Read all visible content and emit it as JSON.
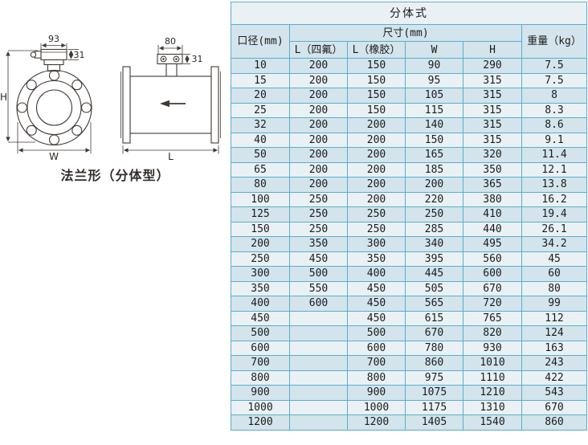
{
  "diagram": {
    "caption": "法兰形（分体型）",
    "front": {
      "top_width": "93",
      "top_height": "31",
      "height_label": "H",
      "width_label": "W"
    },
    "side": {
      "top_width": "80",
      "top_height": "31",
      "length_label": "L"
    }
  },
  "table": {
    "title": "分体式",
    "headers": {
      "diameter": "口径(mm)",
      "size_group": "尺寸(mm)",
      "l_ptfe": "L（四氟）",
      "l_rubber": "L（橡胶）",
      "w": "W",
      "h": "H",
      "weight": "重量（kg）"
    },
    "rows": [
      [
        "10",
        "200",
        "150",
        "90",
        "290",
        "7.5"
      ],
      [
        "15",
        "200",
        "150",
        "95",
        "315",
        "7.5"
      ],
      [
        "20",
        "200",
        "150",
        "105",
        "315",
        "8"
      ],
      [
        "25",
        "200",
        "150",
        "115",
        "315",
        "8.3"
      ],
      [
        "32",
        "200",
        "200",
        "140",
        "315",
        "8.6"
      ],
      [
        "40",
        "200",
        "200",
        "150",
        "315",
        "9.1"
      ],
      [
        "50",
        "200",
        "200",
        "165",
        "320",
        "11.4"
      ],
      [
        "65",
        "200",
        "200",
        "185",
        "350",
        "12.1"
      ],
      [
        "80",
        "200",
        "200",
        "200",
        "365",
        "13.8"
      ],
      [
        "100",
        "250",
        "200",
        "220",
        "380",
        "16.2"
      ],
      [
        "125",
        "250",
        "250",
        "250",
        "410",
        "19.4"
      ],
      [
        "150",
        "250",
        "250",
        "285",
        "440",
        "26.1"
      ],
      [
        "200",
        "350",
        "300",
        "340",
        "495",
        "34.2"
      ],
      [
        "250",
        "450",
        "350",
        "395",
        "560",
        "45"
      ],
      [
        "300",
        "500",
        "400",
        "445",
        "600",
        "60"
      ],
      [
        "350",
        "550",
        "450",
        "505",
        "670",
        "80"
      ],
      [
        "400",
        "600",
        "450",
        "565",
        "720",
        "99"
      ],
      [
        "450",
        "",
        "450",
        "615",
        "765",
        "112"
      ],
      [
        "500",
        "",
        "500",
        "670",
        "820",
        "124"
      ],
      [
        "600",
        "",
        "600",
        "780",
        "930",
        "163"
      ],
      [
        "700",
        "",
        "700",
        "860",
        "1010",
        "243"
      ],
      [
        "800",
        "",
        "800",
        "975",
        "1110",
        "422"
      ],
      [
        "900",
        "",
        "900",
        "1075",
        "1210",
        "543"
      ],
      [
        "1000",
        "",
        "1000",
        "1175",
        "1310",
        "670"
      ],
      [
        "1200",
        "",
        "1200",
        "1405",
        "1540",
        "860"
      ]
    ]
  },
  "colors": {
    "table_border": "#5aaecb",
    "row_dark": "#d3e4ec",
    "row_light": "#eaf1f5",
    "diagram_line": "#403a36",
    "text": "#1c1c1c"
  }
}
